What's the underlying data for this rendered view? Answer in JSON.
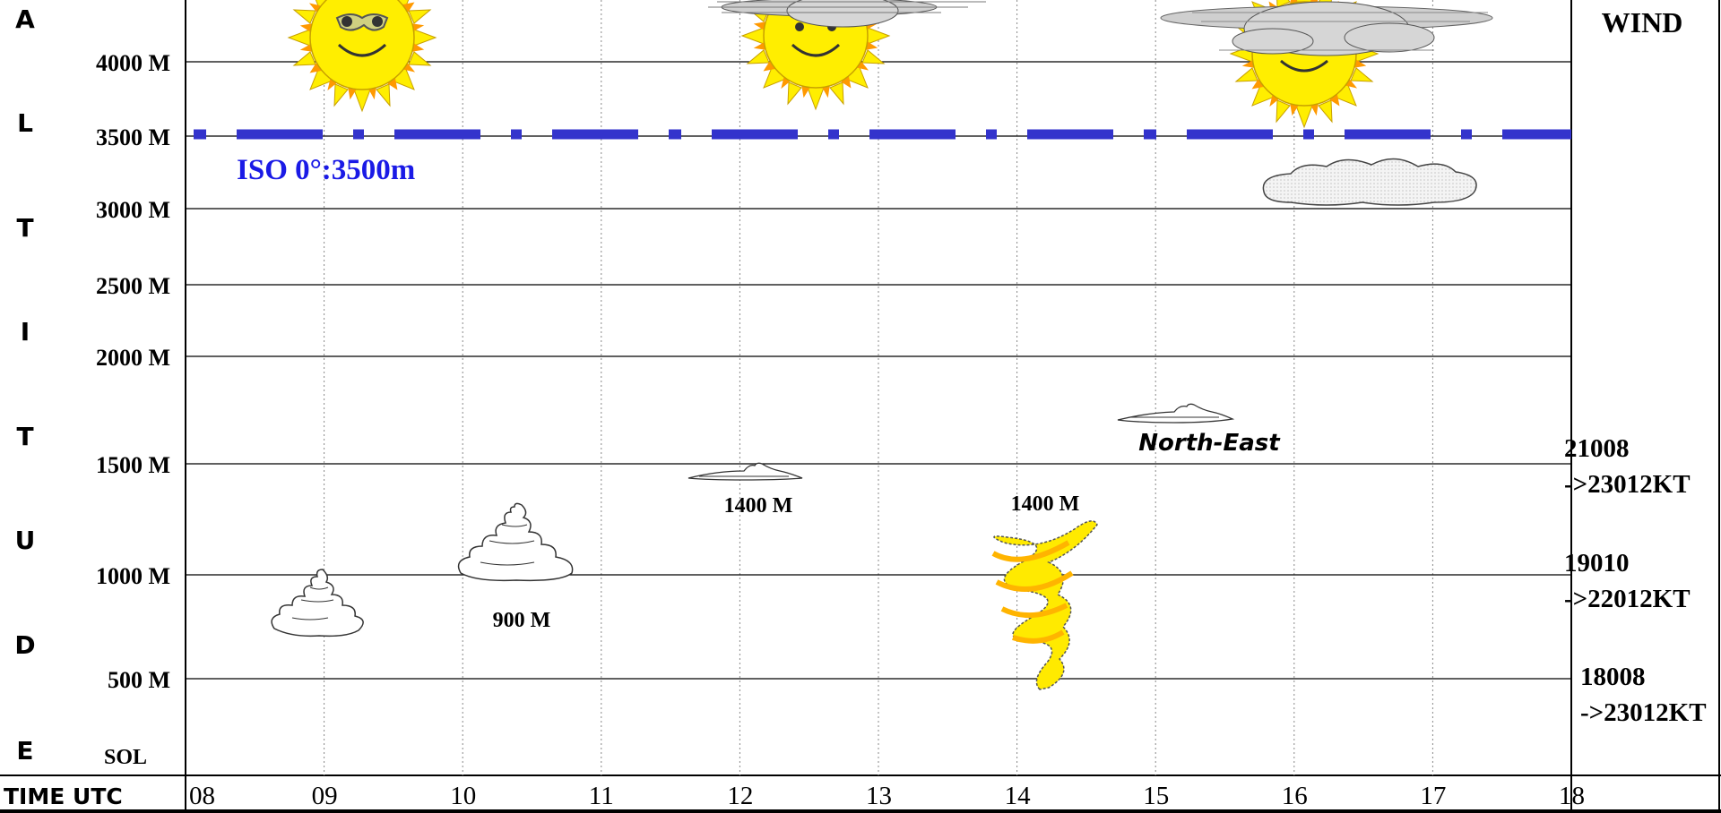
{
  "vertical_title_letters": [
    "A",
    "L",
    "T",
    "I",
    "T",
    "U",
    "D",
    "E"
  ],
  "altitude_levels": [
    {
      "label": "4000 M",
      "value": 4000
    },
    {
      "label": "3500 M",
      "value": 3500
    },
    {
      "label": "3000 M",
      "value": 3000
    },
    {
      "label": "2500 M",
      "value": 2500
    },
    {
      "label": "2000 M",
      "value": 2000
    },
    {
      "label": "1500 M",
      "value": 1500
    },
    {
      "label": "1000 M",
      "value": 1000
    },
    {
      "label": "500 M",
      "value": 500
    }
  ],
  "ground_label": "SOL",
  "time_axis_label": "TIME UTC",
  "time_ticks": [
    "08",
    "09",
    "10",
    "11",
    "12",
    "13",
    "14",
    "15",
    "16",
    "17",
    "18"
  ],
  "wind_header": "WIND",
  "iso_label": "ISO 0°:3500m",
  "annotations": {
    "cloud_base_10h": "900 M",
    "cloud_base_12h": "1400 M",
    "cloud_base_14h": "1400 M",
    "wind_direction_note": "North-East"
  },
  "winds": [
    {
      "line1": "21008",
      "line2": "->23012KT"
    },
    {
      "line1": "19010",
      "line2": "->22012KT"
    },
    {
      "line1": "18008",
      "line2": "->23012KT"
    }
  ],
  "colors": {
    "iso_line": "#3333cc",
    "iso_text": "#1a1ae6",
    "sun": "#ffee00",
    "sun_rays_dark": "#ff9900",
    "overcast": "#d6d6d6",
    "dust_devil": "#ffea00",
    "dust_devil_shade": "#ffb400",
    "grid": "#000000"
  },
  "icons": {
    "sun": "sun-icon",
    "sun_with_sunglasses": "sun-sunglasses-icon",
    "sun_behind_cloud": "sun-cloud-icon",
    "cumulus": "cumulus-cloud-icon",
    "lenticular": "lenticular-cloud-icon",
    "stratus_dotted": "stratus-cloud-icon",
    "dust_devil": "dust-devil-icon"
  }
}
